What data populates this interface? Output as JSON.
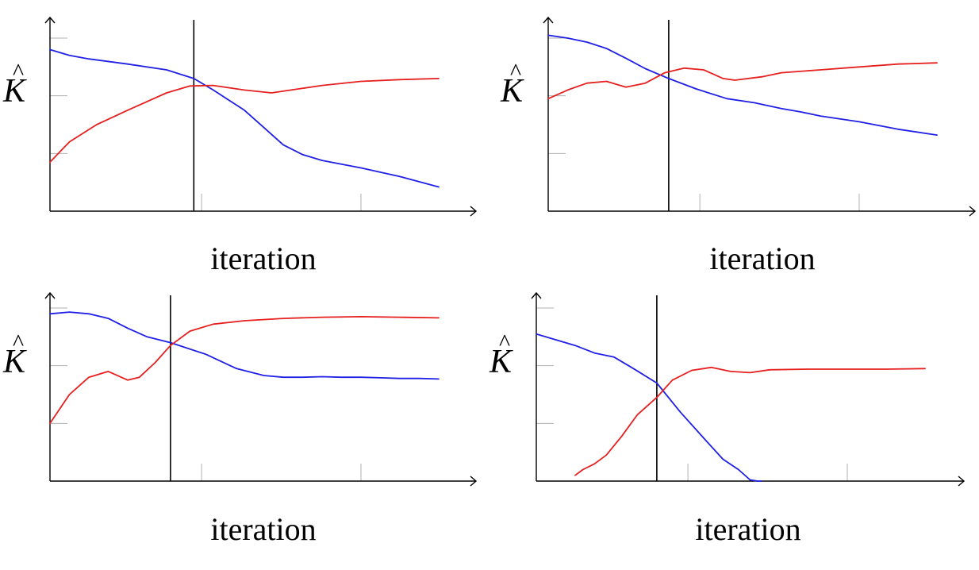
{
  "chart_data": [
    {
      "type": "line",
      "xlabel": "iteration",
      "ylabel": "K",
      "ylabel_accent": "^",
      "xlim": [
        0,
        100
      ],
      "ylim": [
        0,
        3
      ],
      "x_ticks": [
        39,
        80
      ],
      "y_ticks": [
        1,
        2,
        3
      ],
      "vline_x": 37,
      "series": [
        {
          "color": "#1f1fe6",
          "x": [
            0,
            5,
            10,
            20,
            30,
            37,
            42,
            50,
            55,
            60,
            65,
            70,
            80,
            90,
            100
          ],
          "y": [
            2.8,
            2.7,
            2.64,
            2.55,
            2.45,
            2.3,
            2.1,
            1.75,
            1.45,
            1.15,
            0.98,
            0.88,
            0.75,
            0.6,
            0.42
          ]
        },
        {
          "color": "#e61f1f",
          "x": [
            0,
            5,
            12,
            20,
            30,
            36,
            42,
            50,
            57,
            62,
            70,
            80,
            90,
            100
          ],
          "y": [
            0.85,
            1.2,
            1.5,
            1.75,
            2.05,
            2.17,
            2.18,
            2.1,
            2.05,
            2.1,
            2.18,
            2.25,
            2.28,
            2.3
          ]
        }
      ]
    },
    {
      "type": "line",
      "xlabel": "iteration",
      "ylabel": "K",
      "ylabel_accent": "^",
      "xlim": [
        0,
        100
      ],
      "ylim": [
        0,
        3
      ],
      "x_ticks": [
        39,
        80
      ],
      "y_ticks": [
        1,
        2,
        3
      ],
      "vline_x": 31,
      "series": [
        {
          "color": "#1f1fe6",
          "x": [
            0,
            5,
            10,
            15,
            20,
            25,
            31,
            38,
            46,
            53,
            60,
            65,
            70,
            80,
            90,
            100
          ],
          "y": [
            3.05,
            3.0,
            2.93,
            2.82,
            2.65,
            2.47,
            2.3,
            2.12,
            1.95,
            1.88,
            1.78,
            1.72,
            1.65,
            1.55,
            1.42,
            1.32
          ]
        },
        {
          "color": "#e61f1f",
          "x": [
            0,
            5,
            10,
            15,
            20,
            25,
            30,
            35,
            40,
            45,
            48,
            55,
            60,
            70,
            80,
            90,
            100
          ],
          "y": [
            1.95,
            2.1,
            2.22,
            2.25,
            2.15,
            2.22,
            2.4,
            2.48,
            2.45,
            2.3,
            2.27,
            2.33,
            2.4,
            2.45,
            2.5,
            2.55,
            2.57
          ]
        }
      ]
    },
    {
      "type": "line",
      "xlabel": "iteration",
      "ylabel": "K",
      "ylabel_accent": "^",
      "xlim": [
        0,
        100
      ],
      "ylim": [
        0,
        3
      ],
      "x_ticks": [
        39,
        80
      ],
      "y_ticks": [
        1,
        2,
        3
      ],
      "vline_x": 31,
      "series": [
        {
          "color": "#1f1fe6",
          "x": [
            0,
            5,
            10,
            15,
            20,
            25,
            31,
            40,
            48,
            55,
            60,
            65,
            70,
            75,
            80,
            85,
            90,
            95,
            100
          ],
          "y": [
            2.9,
            2.93,
            2.9,
            2.82,
            2.65,
            2.5,
            2.4,
            2.2,
            1.95,
            1.83,
            1.8,
            1.8,
            1.81,
            1.8,
            1.8,
            1.79,
            1.78,
            1.78,
            1.77
          ]
        },
        {
          "color": "#e61f1f",
          "x": [
            0,
            5,
            10,
            15,
            20,
            23,
            27,
            31,
            36,
            42,
            50,
            60,
            70,
            80,
            90,
            100
          ],
          "y": [
            1.0,
            1.5,
            1.8,
            1.9,
            1.75,
            1.8,
            2.05,
            2.35,
            2.6,
            2.72,
            2.78,
            2.82,
            2.84,
            2.85,
            2.84,
            2.83
          ]
        }
      ]
    },
    {
      "type": "line",
      "xlabel": "iteration",
      "ylabel": "K",
      "ylabel_accent": "^",
      "xlim": [
        0,
        100
      ],
      "ylim": [
        0,
        3
      ],
      "x_ticks": [
        39,
        80
      ],
      "y_ticks": [
        1,
        2,
        3
      ],
      "vline_x": 31,
      "series": [
        {
          "color": "#1f1fe6",
          "x": [
            0,
            10,
            15,
            20,
            25,
            31,
            37,
            43,
            48,
            52,
            55,
            57,
            58
          ],
          "y": [
            2.55,
            2.35,
            2.22,
            2.15,
            1.95,
            1.7,
            1.2,
            0.75,
            0.38,
            0.2,
            0.02,
            0.0,
            0.0
          ]
        },
        {
          "color": "#e61f1f",
          "x": [
            10,
            12,
            15,
            18,
            22,
            26,
            31,
            35,
            40,
            45,
            50,
            55,
            60,
            70,
            80,
            90,
            100
          ],
          "y": [
            0.1,
            0.2,
            0.3,
            0.45,
            0.78,
            1.15,
            1.45,
            1.75,
            1.92,
            1.97,
            1.9,
            1.88,
            1.93,
            1.94,
            1.94,
            1.94,
            1.95
          ]
        }
      ]
    }
  ]
}
